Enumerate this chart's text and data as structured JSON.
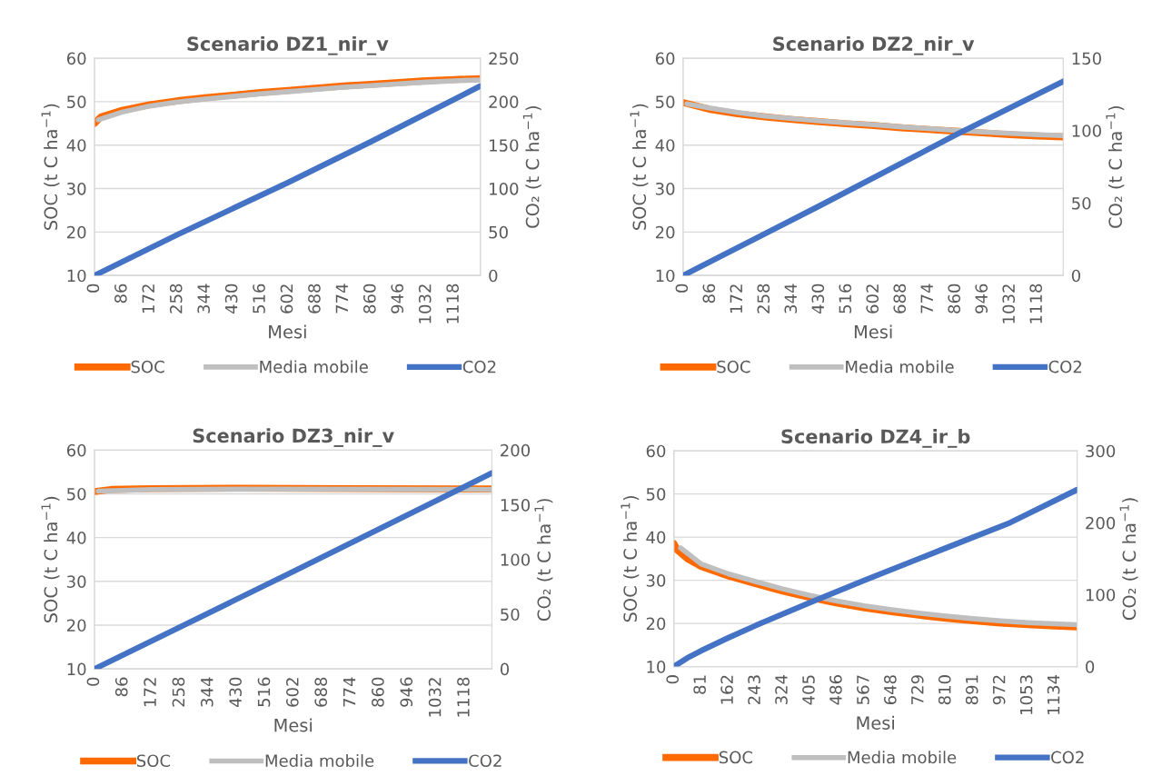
{
  "chart_data": [
    {
      "type": "line",
      "title": "Scenario DZ1_nir_v",
      "xlabel": "Mesi",
      "ylabel": "SOC (t C ha$^{−1}$)",
      "y2label": "CO₂ (t C ha$^{−1}$)",
      "xlim": [
        0,
        1200
      ],
      "xticks": [
        0,
        86,
        172,
        258,
        344,
        430,
        516,
        602,
        688,
        774,
        860,
        946,
        1032,
        1118
      ],
      "ylim": [
        10,
        60
      ],
      "yticks": [
        10,
        20,
        30,
        40,
        50,
        60
      ],
      "y2lim": [
        0,
        250
      ],
      "y2ticks": [
        0,
        50,
        100,
        150,
        200,
        250
      ],
      "grid": "y",
      "legend": "bottom",
      "marker": "none",
      "line_style": "solid",
      "series": [
        {
          "name": "SOC",
          "color": "#ff6a00",
          "x": [
            0,
            20,
            86,
            172,
            258,
            344,
            430,
            516,
            602,
            688,
            774,
            860,
            946,
            1032,
            1118,
            1200
          ],
          "values": [
            45,
            46.5,
            48,
            49.3,
            50.2,
            50.9,
            51.5,
            52.1,
            52.6,
            53.1,
            53.6,
            54.0,
            54.4,
            54.8,
            55.1,
            55.3
          ]
        },
        {
          "name": "Media mobile",
          "color": "#bfbfbf",
          "x": [
            12,
            86,
            172,
            258,
            344,
            430,
            516,
            602,
            688,
            774,
            860,
            946,
            1032,
            1118,
            1200
          ],
          "values": [
            45.8,
            47.6,
            49.0,
            49.9,
            50.6,
            51.2,
            51.8,
            52.3,
            52.8,
            53.3,
            53.7,
            54.1,
            54.5,
            54.8,
            55.0
          ]
        },
        {
          "name": "CO2",
          "color": "#4472c4",
          "axis": "y2",
          "x": [
            0,
            258,
            602,
            860,
            1200
          ],
          "values": [
            0,
            47,
            107,
            154,
            218
          ]
        }
      ]
    },
    {
      "type": "line",
      "title": "Scenario DZ2_nir_v",
      "xlabel": "Mesi",
      "ylabel": "SOC (t C ha$^{−1}$)",
      "y2label": "CO₂ (t C ha$^{−1}$)",
      "xlim": [
        0,
        1200
      ],
      "xticks": [
        0,
        86,
        172,
        258,
        344,
        430,
        516,
        602,
        688,
        774,
        860,
        946,
        1032,
        1118
      ],
      "ylim": [
        10,
        60
      ],
      "yticks": [
        10,
        20,
        30,
        40,
        50,
        60
      ],
      "y2lim": [
        0,
        150
      ],
      "y2ticks": [
        0,
        50,
        100,
        150
      ],
      "grid": "y",
      "legend": "bottom",
      "marker": "none",
      "line_style": "solid",
      "series": [
        {
          "name": "SOC",
          "color": "#ff6a00",
          "x": [
            0,
            86,
            172,
            258,
            344,
            430,
            516,
            602,
            688,
            774,
            860,
            946,
            1032,
            1118,
            1200
          ],
          "values": [
            49.8,
            48.2,
            47.2,
            46.5,
            45.9,
            45.4,
            44.9,
            44.5,
            44.0,
            43.6,
            43.2,
            42.8,
            42.4,
            42.1,
            41.9
          ]
        },
        {
          "name": "Media mobile",
          "color": "#bfbfbf",
          "x": [
            12,
            86,
            172,
            258,
            344,
            430,
            516,
            602,
            688,
            774,
            860,
            946,
            1032,
            1118,
            1200
          ],
          "values": [
            49.5,
            48.5,
            47.5,
            46.7,
            46.1,
            45.6,
            45.1,
            44.7,
            44.2,
            43.8,
            43.4,
            43.0,
            42.7,
            42.4,
            42.2
          ]
        },
        {
          "name": "CO2",
          "color": "#4472c4",
          "axis": "y2",
          "x": [
            0,
            430,
            860,
            1200
          ],
          "values": [
            0,
            48,
            97,
            134
          ]
        }
      ]
    },
    {
      "type": "line",
      "title": "Scenario DZ3_nir_v",
      "xlabel": "Mesi",
      "ylabel": "SOC (t C ha$^{−1}$)",
      "y2label": "CO₂ (t C ha$^{−1}$)",
      "xlim": [
        0,
        1200
      ],
      "xticks": [
        0,
        86,
        172,
        258,
        344,
        430,
        516,
        602,
        688,
        774,
        860,
        946,
        1032,
        1118
      ],
      "ylim": [
        10,
        60
      ],
      "yticks": [
        10,
        20,
        30,
        40,
        50,
        60
      ],
      "y2lim": [
        0,
        200
      ],
      "y2ticks": [
        0,
        50,
        100,
        150,
        200
      ],
      "grid": "y",
      "legend": "bottom",
      "marker": "none",
      "line_style": "solid",
      "series": [
        {
          "name": "SOC",
          "color": "#ff6a00",
          "x": [
            0,
            50,
            172,
            430,
            800,
            1200
          ],
          "values": [
            50.5,
            51.0,
            51.2,
            51.3,
            51.2,
            51.1
          ]
        },
        {
          "name": "Media mobile",
          "color": "#bfbfbf",
          "x": [
            12,
            172,
            600,
            1200
          ],
          "values": [
            50.6,
            51.0,
            51.1,
            51.0
          ]
        },
        {
          "name": "CO2",
          "color": "#4472c4",
          "axis": "y2",
          "x": [
            0,
            600,
            1200
          ],
          "values": [
            0,
            89,
            179
          ]
        }
      ]
    },
    {
      "type": "line",
      "title": "Scenario DZ4_ir_b",
      "xlabel": "Mesi",
      "ylabel": "SOC (t C ha$^{−1}$)",
      "y2label": "CO₂ (t C ha$^{−1}$)",
      "xlim": [
        0,
        1200
      ],
      "xticks": [
        0,
        81,
        162,
        243,
        324,
        405,
        486,
        567,
        648,
        729,
        810,
        891,
        972,
        1053,
        1134
      ],
      "ylim": [
        10,
        60
      ],
      "yticks": [
        10,
        20,
        30,
        40,
        50,
        60
      ],
      "y2lim": [
        0,
        300
      ],
      "y2ticks": [
        0,
        100,
        200,
        300
      ],
      "grid": "y",
      "legend": "bottom",
      "marker": "none",
      "line_style": "solid",
      "series": [
        {
          "name": "SOC",
          "color": "#ff6a00",
          "x": [
            0,
            10,
            40,
            81,
            162,
            243,
            324,
            405,
            486,
            567,
            648,
            729,
            810,
            891,
            972,
            1053,
            1134,
            1200
          ],
          "values": [
            38.5,
            37,
            35,
            33.2,
            31,
            29.2,
            27.5,
            26,
            24.7,
            23.6,
            22.7,
            21.9,
            21.2,
            20.6,
            20.1,
            19.7,
            19.4,
            19.2
          ]
        },
        {
          "name": "Media mobile",
          "color": "#bfbfbf",
          "x": [
            20,
            81,
            162,
            243,
            324,
            405,
            486,
            567,
            648,
            729,
            810,
            891,
            972,
            1053,
            1134,
            1200
          ],
          "values": [
            37.5,
            33.8,
            31.5,
            29.7,
            28,
            26.5,
            25.2,
            24.1,
            23.2,
            22.4,
            21.7,
            21.1,
            20.6,
            20.2,
            19.9,
            19.7
          ]
        },
        {
          "name": "CO2",
          "color": "#4472c4",
          "axis": "y2",
          "x": [
            0,
            40,
            81,
            162,
            243,
            405,
            567,
            810,
            1000,
            1200
          ],
          "values": [
            0,
            12,
            22,
            40,
            57,
            89,
            120,
            165,
            200,
            246
          ]
        }
      ]
    }
  ]
}
